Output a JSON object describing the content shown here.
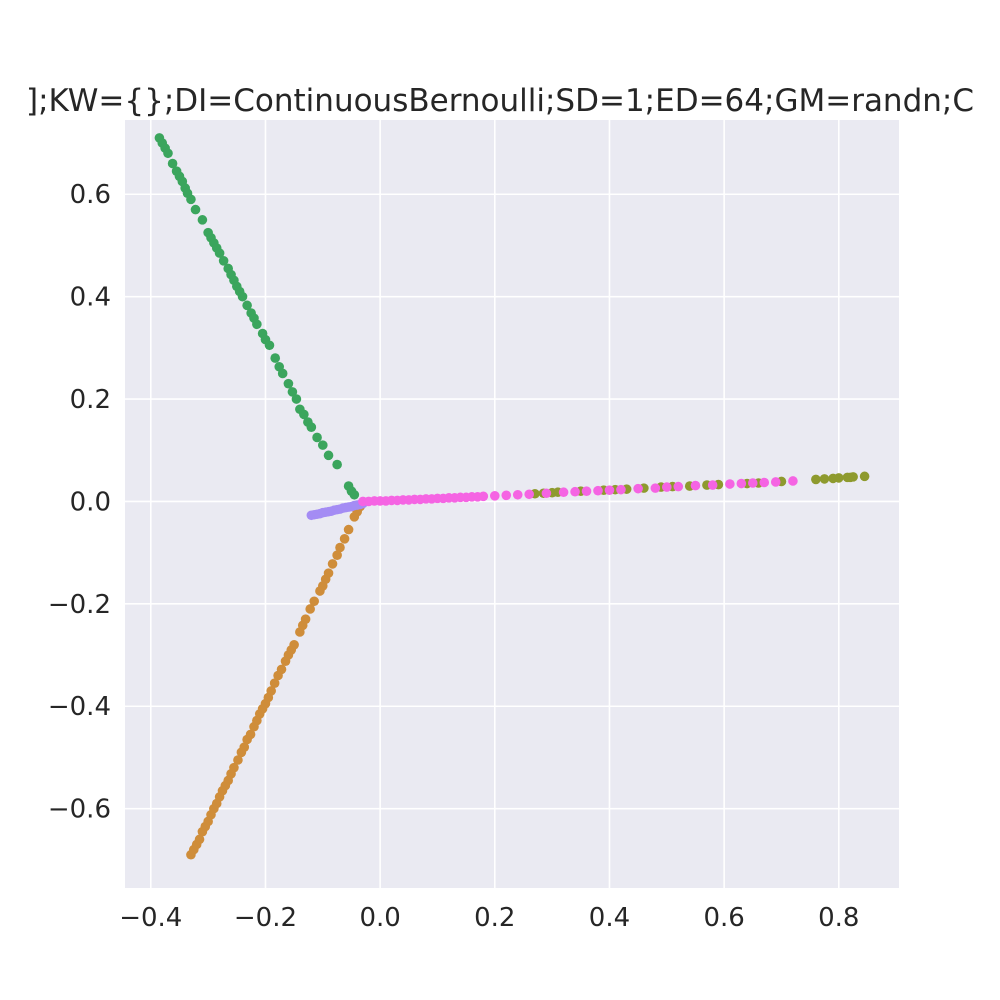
{
  "chart_data": {
    "type": "scatter",
    "title": "];KW={};DI=ContinuousBernoulli;SD=1;ED=64;GM=randn;C",
    "xlabel": "",
    "ylabel": "",
    "xlim": [
      -0.445,
      0.905
    ],
    "ylim": [
      -0.755,
      0.745
    ],
    "grid": true,
    "background": "#eaeaf2",
    "grid_color": "#ffffff",
    "x_ticks": [
      -0.4,
      -0.2,
      0.0,
      0.2,
      0.4,
      0.6,
      0.8
    ],
    "x_tick_labels": [
      "−0.4",
      "−0.2",
      "0.0",
      "0.2",
      "0.4",
      "0.6",
      "0.8"
    ],
    "y_ticks": [
      0.6,
      0.4,
      0.2,
      0.0,
      -0.2,
      -0.4,
      -0.6
    ],
    "y_tick_labels": [
      "0.6",
      "0.4",
      "0.2",
      "0.0",
      "−0.2",
      "−0.4",
      "−0.6"
    ],
    "series": [
      {
        "color": "#3ba55d",
        "points": [
          [
            -0.385,
            0.71
          ],
          [
            -0.38,
            0.7
          ],
          [
            -0.375,
            0.69
          ],
          [
            -0.37,
            0.68
          ],
          [
            -0.362,
            0.66
          ],
          [
            -0.355,
            0.645
          ],
          [
            -0.35,
            0.635
          ],
          [
            -0.345,
            0.625
          ],
          [
            -0.34,
            0.612
          ],
          [
            -0.336,
            0.602
          ],
          [
            -0.33,
            0.59
          ],
          [
            -0.322,
            0.57
          ],
          [
            -0.31,
            0.55
          ],
          [
            -0.3,
            0.525
          ],
          [
            -0.295,
            0.515
          ],
          [
            -0.29,
            0.505
          ],
          [
            -0.285,
            0.495
          ],
          [
            -0.28,
            0.485
          ],
          [
            -0.273,
            0.47
          ],
          [
            -0.265,
            0.455
          ],
          [
            -0.26,
            0.443
          ],
          [
            -0.255,
            0.432
          ],
          [
            -0.25,
            0.42
          ],
          [
            -0.245,
            0.41
          ],
          [
            -0.24,
            0.4
          ],
          [
            -0.232,
            0.383
          ],
          [
            -0.225,
            0.368
          ],
          [
            -0.22,
            0.358
          ],
          [
            -0.215,
            0.346
          ],
          [
            -0.205,
            0.328
          ],
          [
            -0.2,
            0.316
          ],
          [
            -0.193,
            0.305
          ],
          [
            -0.183,
            0.28
          ],
          [
            -0.176,
            0.263
          ],
          [
            -0.17,
            0.25
          ],
          [
            -0.16,
            0.23
          ],
          [
            -0.153,
            0.214
          ],
          [
            -0.146,
            0.2
          ],
          [
            -0.14,
            0.18
          ],
          [
            -0.133,
            0.17
          ],
          [
            -0.126,
            0.155
          ],
          [
            -0.12,
            0.145
          ],
          [
            -0.11,
            0.125
          ],
          [
            -0.1,
            0.11
          ],
          [
            -0.09,
            0.09
          ],
          [
            -0.075,
            0.072
          ],
          [
            -0.055,
            0.03
          ],
          [
            -0.05,
            0.02
          ],
          [
            -0.045,
            0.013
          ]
        ]
      },
      {
        "color": "#cf8d3a",
        "points": [
          [
            -0.33,
            -0.69
          ],
          [
            -0.325,
            -0.68
          ],
          [
            -0.32,
            -0.67
          ],
          [
            -0.315,
            -0.66
          ],
          [
            -0.31,
            -0.645
          ],
          [
            -0.305,
            -0.635
          ],
          [
            -0.3,
            -0.625
          ],
          [
            -0.295,
            -0.612
          ],
          [
            -0.29,
            -0.6
          ],
          [
            -0.285,
            -0.59
          ],
          [
            -0.28,
            -0.577
          ],
          [
            -0.275,
            -0.565
          ],
          [
            -0.27,
            -0.555
          ],
          [
            -0.265,
            -0.545
          ],
          [
            -0.26,
            -0.532
          ],
          [
            -0.255,
            -0.52
          ],
          [
            -0.248,
            -0.505
          ],
          [
            -0.242,
            -0.49
          ],
          [
            -0.237,
            -0.48
          ],
          [
            -0.232,
            -0.465
          ],
          [
            -0.226,
            -0.455
          ],
          [
            -0.22,
            -0.44
          ],
          [
            -0.215,
            -0.428
          ],
          [
            -0.21,
            -0.415
          ],
          [
            -0.205,
            -0.405
          ],
          [
            -0.2,
            -0.395
          ],
          [
            -0.195,
            -0.383
          ],
          [
            -0.19,
            -0.37
          ],
          [
            -0.184,
            -0.355
          ],
          [
            -0.178,
            -0.34
          ],
          [
            -0.172,
            -0.328
          ],
          [
            -0.165,
            -0.312
          ],
          [
            -0.16,
            -0.3
          ],
          [
            -0.155,
            -0.29
          ],
          [
            -0.15,
            -0.28
          ],
          [
            -0.14,
            -0.255
          ],
          [
            -0.135,
            -0.242
          ],
          [
            -0.13,
            -0.23
          ],
          [
            -0.122,
            -0.21
          ],
          [
            -0.115,
            -0.195
          ],
          [
            -0.105,
            -0.175
          ],
          [
            -0.1,
            -0.165
          ],
          [
            -0.095,
            -0.152
          ],
          [
            -0.09,
            -0.14
          ],
          [
            -0.083,
            -0.122
          ],
          [
            -0.075,
            -0.105
          ],
          [
            -0.07,
            -0.09
          ],
          [
            -0.062,
            -0.073
          ],
          [
            -0.055,
            -0.055
          ],
          [
            -0.045,
            -0.03
          ],
          [
            -0.04,
            -0.02
          ],
          [
            -0.035,
            -0.01
          ]
        ]
      },
      {
        "color": "#a48cf4",
        "points": [
          [
            -0.12,
            -0.027
          ],
          [
            -0.115,
            -0.026
          ],
          [
            -0.11,
            -0.025
          ],
          [
            -0.105,
            -0.024
          ],
          [
            -0.1,
            -0.022
          ],
          [
            -0.095,
            -0.021
          ],
          [
            -0.09,
            -0.02
          ],
          [
            -0.085,
            -0.019
          ],
          [
            -0.08,
            -0.017
          ],
          [
            -0.075,
            -0.016
          ],
          [
            -0.07,
            -0.015
          ],
          [
            -0.065,
            -0.013
          ],
          [
            -0.06,
            -0.012
          ],
          [
            -0.055,
            -0.011
          ],
          [
            -0.05,
            -0.01
          ],
          [
            -0.045,
            -0.008
          ],
          [
            -0.04,
            -0.007
          ],
          [
            -0.035,
            -0.006
          ],
          [
            -0.03,
            -0.004
          ]
        ]
      },
      {
        "color": "#8e9a2e",
        "points": [
          [
            0.27,
            0.015
          ],
          [
            0.285,
            0.016
          ],
          [
            0.3,
            0.017
          ],
          [
            0.31,
            0.018
          ],
          [
            0.35,
            0.02
          ],
          [
            0.39,
            0.022
          ],
          [
            0.41,
            0.023
          ],
          [
            0.43,
            0.024
          ],
          [
            0.46,
            0.026
          ],
          [
            0.49,
            0.028
          ],
          [
            0.51,
            0.029
          ],
          [
            0.54,
            0.03
          ],
          [
            0.57,
            0.032
          ],
          [
            0.59,
            0.033
          ],
          [
            0.64,
            0.035
          ],
          [
            0.66,
            0.036
          ],
          [
            0.7,
            0.039
          ],
          [
            0.76,
            0.043
          ],
          [
            0.775,
            0.044
          ],
          [
            0.79,
            0.045
          ],
          [
            0.8,
            0.046
          ],
          [
            0.815,
            0.047
          ],
          [
            0.82,
            0.047
          ],
          [
            0.825,
            0.048
          ],
          [
            0.845,
            0.049
          ]
        ]
      },
      {
        "color": "#f564e3",
        "points": [
          [
            -0.03,
            0.0
          ],
          [
            -0.02,
            0.0
          ],
          [
            -0.01,
            0.001
          ],
          [
            0.0,
            0.001
          ],
          [
            0.01,
            0.001
          ],
          [
            0.02,
            0.002
          ],
          [
            0.03,
            0.002
          ],
          [
            0.04,
            0.003
          ],
          [
            0.05,
            0.003
          ],
          [
            0.06,
            0.004
          ],
          [
            0.07,
            0.004
          ],
          [
            0.08,
            0.005
          ],
          [
            0.09,
            0.005
          ],
          [
            0.1,
            0.006
          ],
          [
            0.11,
            0.006
          ],
          [
            0.12,
            0.007
          ],
          [
            0.13,
            0.007
          ],
          [
            0.14,
            0.008
          ],
          [
            0.15,
            0.008
          ],
          [
            0.16,
            0.009
          ],
          [
            0.17,
            0.009
          ],
          [
            0.18,
            0.01
          ],
          [
            0.2,
            0.011
          ],
          [
            0.22,
            0.012
          ],
          [
            0.24,
            0.013
          ],
          [
            0.26,
            0.014
          ],
          [
            0.29,
            0.016
          ],
          [
            0.32,
            0.018
          ],
          [
            0.34,
            0.019
          ],
          [
            0.36,
            0.02
          ],
          [
            0.38,
            0.021
          ],
          [
            0.4,
            0.022
          ],
          [
            0.42,
            0.023
          ],
          [
            0.45,
            0.025
          ],
          [
            0.48,
            0.026
          ],
          [
            0.5,
            0.028
          ],
          [
            0.52,
            0.029
          ],
          [
            0.55,
            0.031
          ],
          [
            0.58,
            0.032
          ],
          [
            0.61,
            0.034
          ],
          [
            0.63,
            0.035
          ],
          [
            0.65,
            0.036
          ],
          [
            0.67,
            0.037
          ],
          [
            0.69,
            0.038
          ],
          [
            0.72,
            0.04
          ]
        ]
      }
    ]
  }
}
